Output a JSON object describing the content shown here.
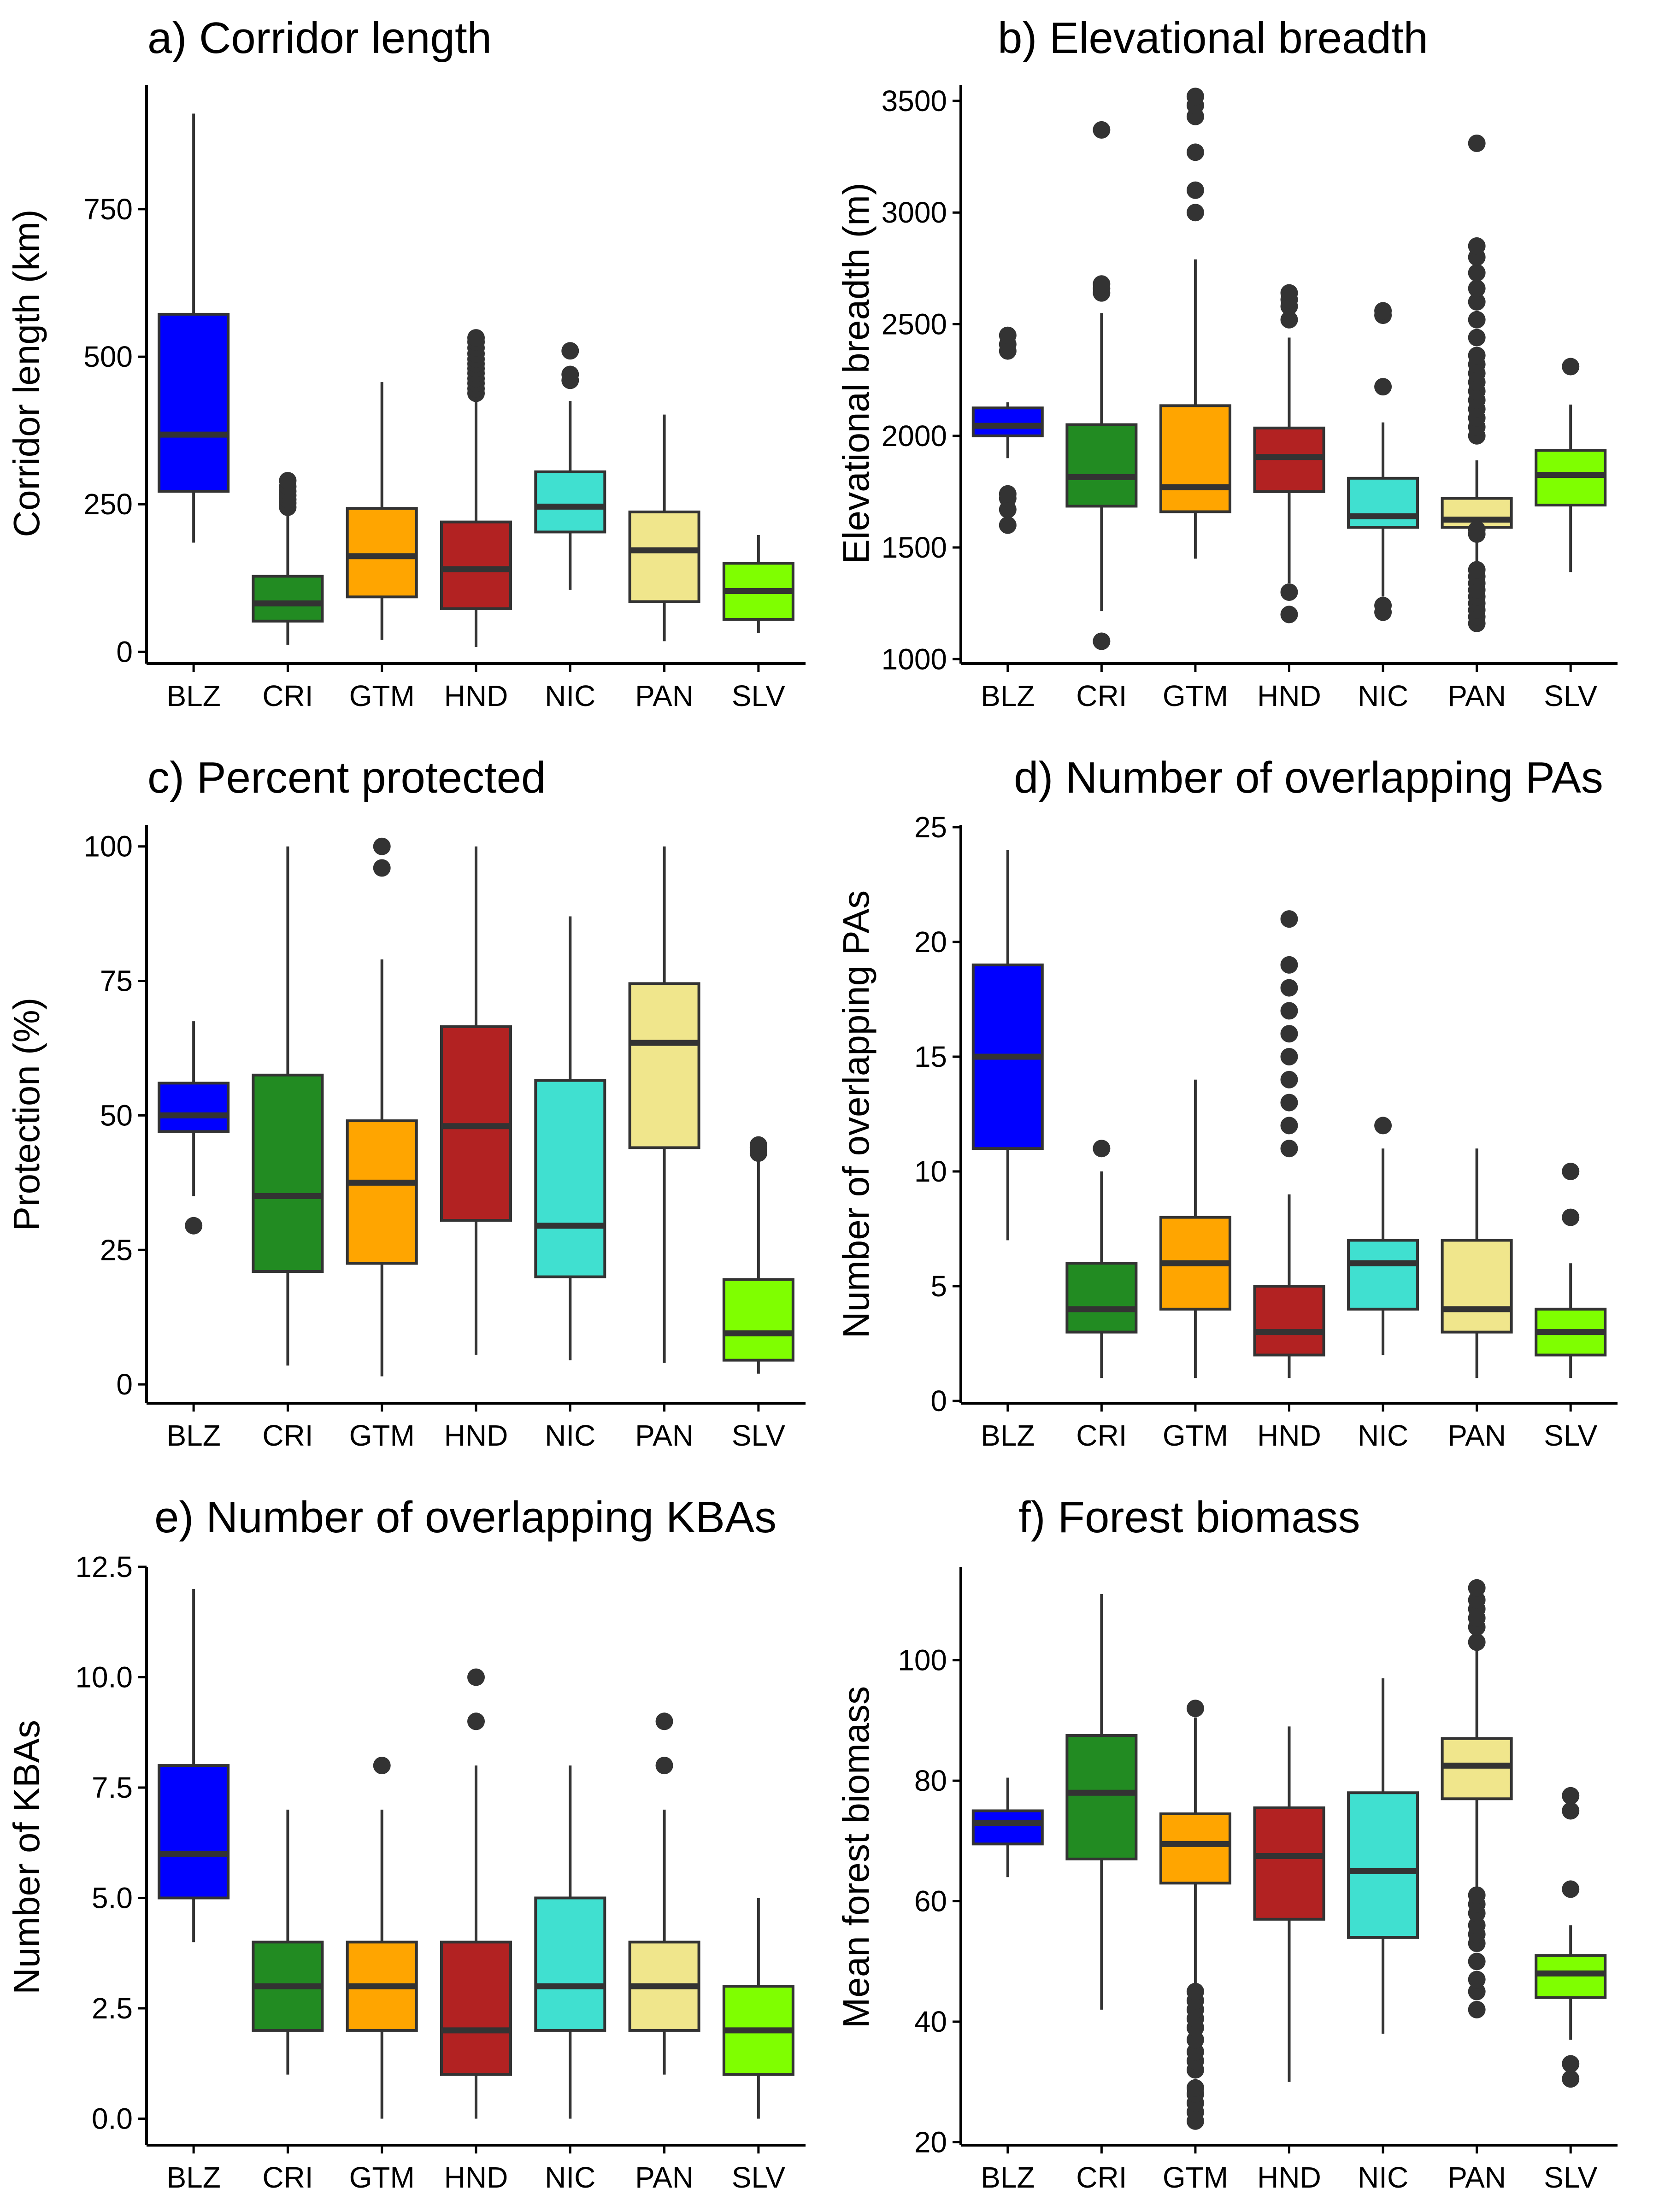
{
  "colors": {
    "BLZ": "#0000ff",
    "CRI": "#228b22",
    "GTM": "#ffa500",
    "HND": "#b22222",
    "NIC": "#40e0d0",
    "PAN": "#f0e68c",
    "SLV": "#7fff00"
  },
  "chart_data": [
    {
      "type": "box",
      "title": "a) Corridor length",
      "ylabel": "Corridor length (km)",
      "ylim": [
        -20,
        960
      ],
      "yticks": [
        0,
        250,
        500,
        750
      ],
      "yticklabels": [
        "0",
        "250",
        "500",
        "750"
      ],
      "categories": [
        "BLZ",
        "CRI",
        "GTM",
        "HND",
        "NIC",
        "PAN",
        "SLV"
      ],
      "boxes": [
        {
          "min": 185,
          "q1": 272,
          "median": 368,
          "q3": 572,
          "max": 912,
          "outliers": []
        },
        {
          "min": 12,
          "q1": 52,
          "median": 82,
          "q3": 128,
          "max": 238,
          "outliers": [
            245,
            252,
            258,
            265,
            272,
            280,
            290
          ]
        },
        {
          "min": 20,
          "q1": 93,
          "median": 162,
          "q3": 243,
          "max": 457,
          "outliers": []
        },
        {
          "min": 8,
          "q1": 73,
          "median": 140,
          "q3": 220,
          "max": 428,
          "outliers": [
            438,
            446,
            455,
            463,
            472,
            480,
            488,
            496,
            505,
            515,
            525,
            532
          ]
        },
        {
          "min": 105,
          "q1": 203,
          "median": 246,
          "q3": 305,
          "max": 425,
          "outliers": [
            460,
            470,
            510
          ]
        },
        {
          "min": 18,
          "q1": 85,
          "median": 172,
          "q3": 237,
          "max": 402,
          "outliers": []
        },
        {
          "min": 32,
          "q1": 55,
          "median": 103,
          "q3": 150,
          "max": 198,
          "outliers": []
        }
      ]
    },
    {
      "type": "box",
      "title": "b) Elevational breadth",
      "ylabel": "Elevational breadth (m)",
      "ylim": [
        980,
        3570
      ],
      "yticks": [
        1000,
        1500,
        2000,
        2500,
        3000,
        3500
      ],
      "yticklabels": [
        "1000",
        "1500",
        "2000",
        "2500",
        "3000",
        "3500"
      ],
      "categories": [
        "BLZ",
        "CRI",
        "GTM",
        "HND",
        "NIC",
        "PAN",
        "SLV"
      ],
      "boxes": [
        {
          "min": 1900,
          "q1": 2000,
          "median": 2045,
          "q3": 2125,
          "max": 2150,
          "outliers": [
            1600,
            1670,
            1720,
            1740,
            2380,
            2410,
            2450
          ]
        },
        {
          "min": 1215,
          "q1": 1685,
          "median": 1815,
          "q3": 2050,
          "max": 2550,
          "outliers": [
            1080,
            2640,
            2660,
            2680,
            3370
          ]
        },
        {
          "min": 1450,
          "q1": 1660,
          "median": 1770,
          "q3": 2135,
          "max": 2790,
          "outliers": [
            3000,
            3100,
            3270,
            3430,
            3480,
            3520
          ]
        },
        {
          "min": 1340,
          "q1": 1750,
          "median": 1905,
          "q3": 2035,
          "max": 2440,
          "outliers": [
            1200,
            1300,
            2520,
            2580,
            2610,
            2640
          ]
        },
        {
          "min": 1280,
          "q1": 1590,
          "median": 1640,
          "q3": 1810,
          "max": 2060,
          "outliers": [
            1210,
            1240,
            2220,
            2540,
            2560
          ]
        },
        {
          "min": 1440,
          "q1": 1590,
          "median": 1625,
          "q3": 1720,
          "max": 1890,
          "outliers": [
            1160,
            1190,
            1220,
            1250,
            1280,
            1310,
            1340,
            1370,
            1400,
            1560,
            1580,
            2000,
            2040,
            2080,
            2120,
            2160,
            2200,
            2240,
            2280,
            2320,
            2360,
            2440,
            2520,
            2600,
            2660,
            2730,
            2800,
            2850,
            3310
          ]
        },
        {
          "min": 1390,
          "q1": 1690,
          "median": 1825,
          "q3": 1935,
          "max": 2140,
          "outliers": [
            2310
          ]
        }
      ]
    },
    {
      "type": "box",
      "title": "c) Percent protected",
      "ylabel": "Protection (%)",
      "ylim": [
        -3.5,
        104
      ],
      "yticks": [
        0,
        25,
        50,
        75,
        100
      ],
      "yticklabels": [
        "0",
        "25",
        "50",
        "75",
        "100"
      ],
      "categories": [
        "BLZ",
        "CRI",
        "GTM",
        "HND",
        "NIC",
        "PAN",
        "SLV"
      ],
      "boxes": [
        {
          "min": 35,
          "q1": 47,
          "median": 50,
          "q3": 56,
          "max": 67.5,
          "outliers": [
            29.5
          ]
        },
        {
          "min": 3.5,
          "q1": 21,
          "median": 35,
          "q3": 57.5,
          "max": 100,
          "outliers": []
        },
        {
          "min": 1.5,
          "q1": 22.5,
          "median": 37.5,
          "q3": 49,
          "max": 79,
          "outliers": [
            96,
            100
          ]
        },
        {
          "min": 5.5,
          "q1": 30.5,
          "median": 48,
          "q3": 66.5,
          "max": 100,
          "outliers": []
        },
        {
          "min": 4.5,
          "q1": 20,
          "median": 29.5,
          "q3": 56.5,
          "max": 87,
          "outliers": []
        },
        {
          "min": 4,
          "q1": 44,
          "median": 63.5,
          "q3": 74.5,
          "max": 100,
          "outliers": []
        },
        {
          "min": 2,
          "q1": 4.5,
          "median": 9.5,
          "q3": 19.5,
          "max": 41.5,
          "outliers": [
            43,
            44,
            44.5
          ]
        }
      ]
    },
    {
      "type": "box",
      "title": "d) Number of overlapping PAs",
      "ylabel": "Number of overlapping PAs",
      "ylim": [
        -0.1,
        25.1
      ],
      "yticks": [
        0,
        5,
        10,
        15,
        20,
        25
      ],
      "yticklabels": [
        "0",
        "5",
        "10",
        "15",
        "20",
        "25"
      ],
      "categories": [
        "BLZ",
        "CRI",
        "GTM",
        "HND",
        "NIC",
        "PAN",
        "SLV"
      ],
      "boxes": [
        {
          "min": 7,
          "q1": 11,
          "median": 15,
          "q3": 19,
          "max": 24,
          "outliers": []
        },
        {
          "min": 1,
          "q1": 3,
          "median": 4,
          "q3": 6,
          "max": 10,
          "outliers": [
            11
          ]
        },
        {
          "min": 1,
          "q1": 4,
          "median": 6,
          "q3": 8,
          "max": 14,
          "outliers": []
        },
        {
          "min": 1,
          "q1": 2,
          "median": 3,
          "q3": 5,
          "max": 9,
          "outliers": [
            11,
            12,
            13,
            14,
            15,
            16,
            17,
            18,
            19,
            21
          ]
        },
        {
          "min": 2,
          "q1": 4,
          "median": 6,
          "q3": 7,
          "max": 11,
          "outliers": [
            12
          ]
        },
        {
          "min": 1,
          "q1": 3,
          "median": 4,
          "q3": 7,
          "max": 11,
          "outliers": []
        },
        {
          "min": 1,
          "q1": 2,
          "median": 3,
          "q3": 4,
          "max": 6,
          "outliers": [
            8,
            10
          ]
        }
      ]
    },
    {
      "type": "box",
      "title": "e) Number of overlapping KBAs",
      "ylabel": "Number of KBAs",
      "ylim": [
        -0.6,
        12.5
      ],
      "yticks": [
        0,
        2.5,
        5,
        7.5,
        10,
        12.5
      ],
      "yticklabels": [
        "0.0",
        "2.5",
        "5.0",
        "7.5",
        "10.0",
        "12.5"
      ],
      "categories": [
        "BLZ",
        "CRI",
        "GTM",
        "HND",
        "NIC",
        "PAN",
        "SLV"
      ],
      "boxes": [
        {
          "min": 4,
          "q1": 5,
          "median": 6,
          "q3": 8,
          "max": 12,
          "outliers": []
        },
        {
          "min": 1,
          "q1": 2,
          "median": 3,
          "q3": 4,
          "max": 7,
          "outliers": []
        },
        {
          "min": 0,
          "q1": 2,
          "median": 3,
          "q3": 4,
          "max": 7,
          "outliers": [
            8
          ]
        },
        {
          "min": 0,
          "q1": 1,
          "median": 2,
          "q3": 4,
          "max": 8,
          "outliers": [
            9,
            10
          ]
        },
        {
          "min": 0,
          "q1": 2,
          "median": 3,
          "q3": 5,
          "max": 8,
          "outliers": []
        },
        {
          "min": 1,
          "q1": 2,
          "median": 3,
          "q3": 4,
          "max": 7,
          "outliers": [
            8,
            9
          ]
        },
        {
          "min": 0,
          "q1": 1,
          "median": 2,
          "q3": 3,
          "max": 5,
          "outliers": []
        }
      ]
    },
    {
      "type": "box",
      "title": "f) Forest biomass",
      "ylabel": "Mean forest biomass",
      "ylim": [
        19.5,
        115.5
      ],
      "yticks": [
        20,
        40,
        60,
        80,
        100
      ],
      "yticklabels": [
        "20",
        "40",
        "60",
        "80",
        "100"
      ],
      "categories": [
        "BLZ",
        "CRI",
        "GTM",
        "HND",
        "NIC",
        "PAN",
        "SLV"
      ],
      "boxes": [
        {
          "min": 64,
          "q1": 69.5,
          "median": 73,
          "q3": 75,
          "max": 80.5,
          "outliers": []
        },
        {
          "min": 42,
          "q1": 67,
          "median": 78,
          "q3": 87.5,
          "max": 111,
          "outliers": []
        },
        {
          "min": 46,
          "q1": 63,
          "median": 69.5,
          "q3": 74.5,
          "max": 90.5,
          "outliers": [
            23.5,
            25,
            26.5,
            28,
            29,
            32,
            33.5,
            35,
            37,
            39,
            40.5,
            42,
            43.5,
            45,
            92
          ]
        },
        {
          "min": 30,
          "q1": 57,
          "median": 67.5,
          "q3": 75.5,
          "max": 89,
          "outliers": []
        },
        {
          "min": 38,
          "q1": 54,
          "median": 65,
          "q3": 78,
          "max": 97,
          "outliers": []
        },
        {
          "min": 62,
          "q1": 77,
          "median": 82.5,
          "q3": 87,
          "max": 102,
          "outliers": [
            42,
            45,
            47,
            50,
            53,
            54.5,
            56,
            58,
            59.5,
            61,
            103,
            105.5,
            107,
            108.5,
            110,
            112
          ]
        },
        {
          "min": 37,
          "q1": 44,
          "median": 48,
          "q3": 51,
          "max": 56,
          "outliers": [
            30.5,
            33,
            62,
            75,
            77.5
          ]
        }
      ]
    }
  ]
}
